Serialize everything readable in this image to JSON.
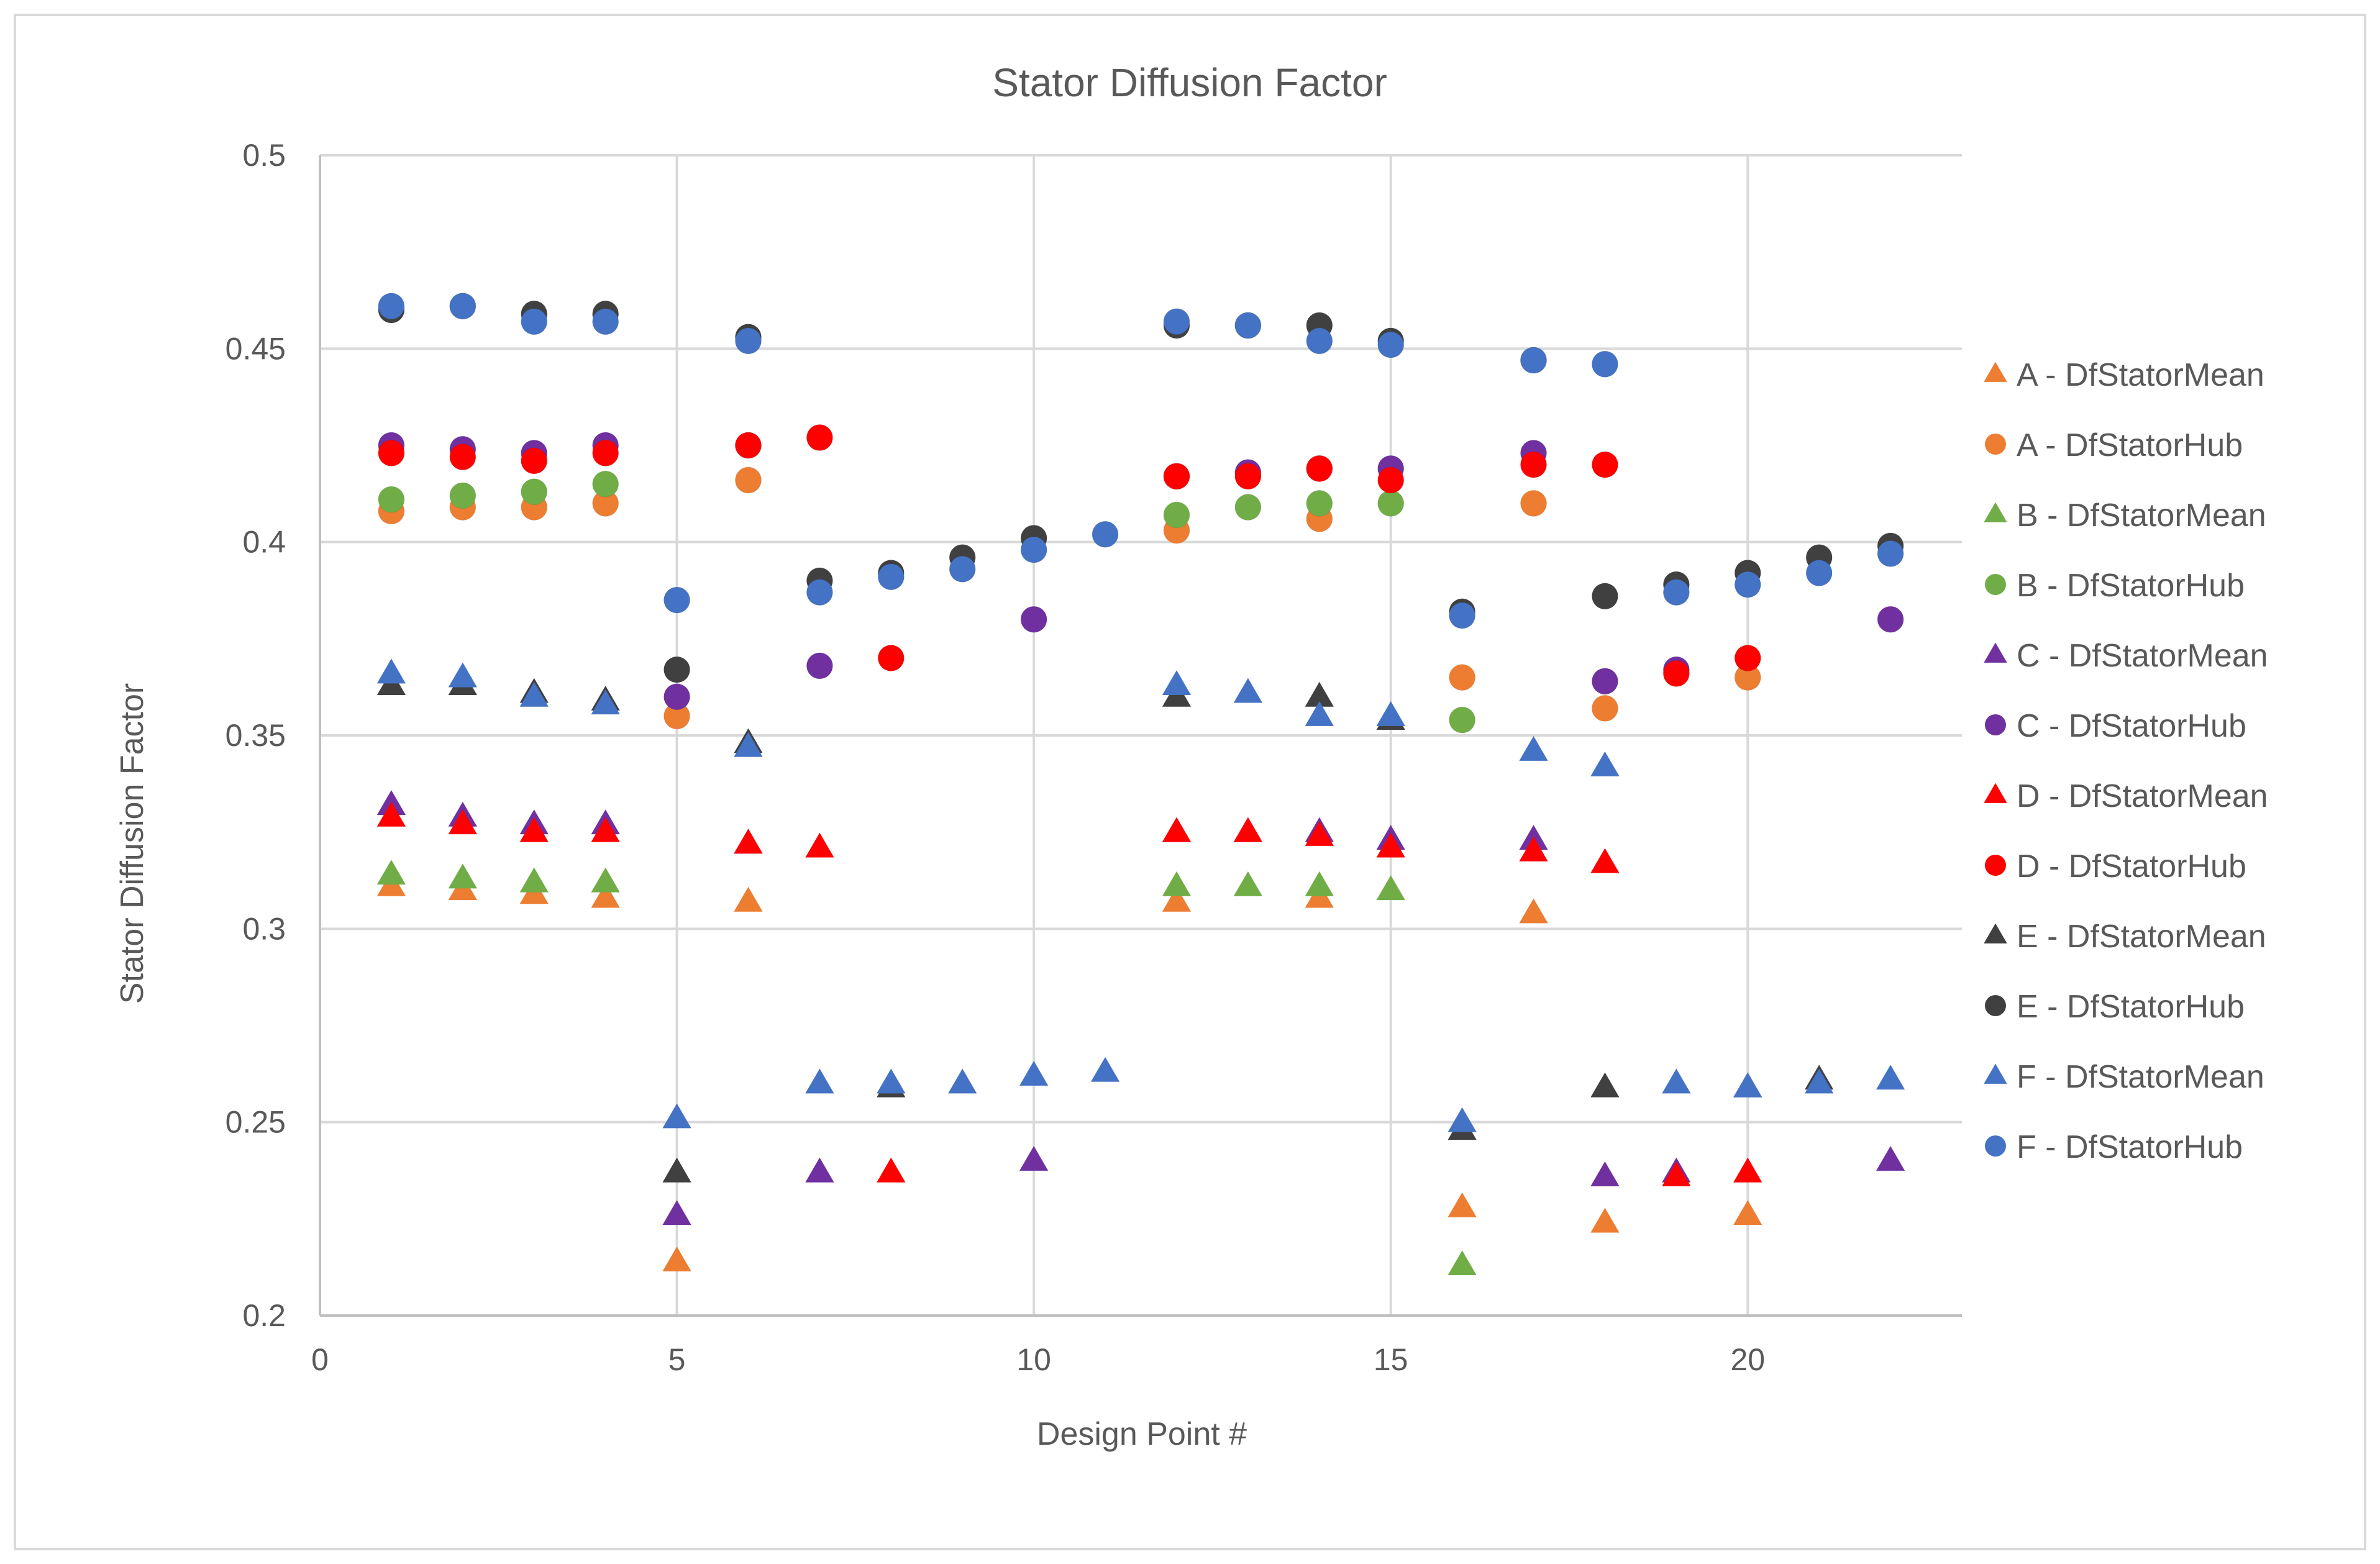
{
  "chart_data": {
    "type": "scatter",
    "title": "Stator Diffusion Factor",
    "xlabel": "Design Point #",
    "ylabel": "Stator Diffusion Factor",
    "xlim": [
      0,
      23
    ],
    "ylim": [
      0.2,
      0.5
    ],
    "xticks": [
      0,
      5,
      10,
      15,
      20
    ],
    "xtick_labels": [
      "0",
      "5",
      "10",
      "15",
      "20"
    ],
    "yticks": [
      0.2,
      0.25,
      0.3,
      0.35,
      0.4,
      0.45,
      0.5
    ],
    "ytick_labels": [
      "0.2",
      "0.25",
      "0.3",
      "0.35",
      "0.4",
      "0.45",
      "0.5"
    ],
    "grid": true,
    "legend_position": "right",
    "series": [
      {
        "name": "A - DfStatorMean",
        "marker": "triangle",
        "color": "#ED7D31",
        "points": [
          [
            1,
            0.311
          ],
          [
            2,
            0.31
          ],
          [
            3,
            0.309
          ],
          [
            4,
            0.308
          ],
          [
            5,
            0.214
          ],
          [
            6,
            0.307
          ],
          [
            12,
            0.307
          ],
          [
            14,
            0.308
          ],
          [
            16,
            0.228
          ],
          [
            17,
            0.304
          ],
          [
            18,
            0.224
          ],
          [
            20,
            0.226
          ]
        ]
      },
      {
        "name": "A - DfStatorHub",
        "marker": "circle",
        "color": "#ED7D31",
        "points": [
          [
            1,
            0.408
          ],
          [
            2,
            0.409
          ],
          [
            3,
            0.409
          ],
          [
            4,
            0.41
          ],
          [
            5,
            0.355
          ],
          [
            6,
            0.416
          ],
          [
            12,
            0.403
          ],
          [
            14,
            0.406
          ],
          [
            16,
            0.365
          ],
          [
            17,
            0.41
          ],
          [
            18,
            0.357
          ],
          [
            20,
            0.365
          ]
        ]
      },
      {
        "name": "B - DfStatorMean",
        "marker": "triangle",
        "color": "#70AD47",
        "points": [
          [
            1,
            0.314
          ],
          [
            2,
            0.313
          ],
          [
            3,
            0.312
          ],
          [
            4,
            0.312
          ],
          [
            12,
            0.311
          ],
          [
            13,
            0.311
          ],
          [
            14,
            0.311
          ],
          [
            15,
            0.31
          ],
          [
            16,
            0.213
          ]
        ]
      },
      {
        "name": "B - DfStatorHub",
        "marker": "circle",
        "color": "#70AD47",
        "points": [
          [
            1,
            0.411
          ],
          [
            2,
            0.412
          ],
          [
            3,
            0.413
          ],
          [
            4,
            0.415
          ],
          [
            12,
            0.407
          ],
          [
            13,
            0.409
          ],
          [
            14,
            0.41
          ],
          [
            15,
            0.41
          ],
          [
            16,
            0.354
          ]
        ]
      },
      {
        "name": "C - DfStatorMean",
        "marker": "triangle",
        "color": "#7030A0",
        "points": [
          [
            1,
            0.332
          ],
          [
            2,
            0.329
          ],
          [
            3,
            0.327
          ],
          [
            4,
            0.327
          ],
          [
            5,
            0.226
          ],
          [
            6,
            0.322
          ],
          [
            7,
            0.237
          ],
          [
            10,
            0.24
          ],
          [
            12,
            0.325
          ],
          [
            13,
            0.325
          ],
          [
            14,
            0.325
          ],
          [
            15,
            0.323
          ],
          [
            17,
            0.323
          ],
          [
            18,
            0.236
          ],
          [
            19,
            0.237
          ],
          [
            22,
            0.24
          ]
        ]
      },
      {
        "name": "C - DfStatorHub",
        "marker": "circle",
        "color": "#7030A0",
        "points": [
          [
            1,
            0.425
          ],
          [
            2,
            0.424
          ],
          [
            3,
            0.423
          ],
          [
            4,
            0.425
          ],
          [
            5,
            0.36
          ],
          [
            6,
            0.425
          ],
          [
            7,
            0.368
          ],
          [
            10,
            0.38
          ],
          [
            12,
            0.417
          ],
          [
            13,
            0.418
          ],
          [
            14,
            0.419
          ],
          [
            15,
            0.419
          ],
          [
            17,
            0.423
          ],
          [
            18,
            0.364
          ],
          [
            19,
            0.367
          ],
          [
            22,
            0.38
          ]
        ]
      },
      {
        "name": "D - DfStatorMean",
        "marker": "triangle",
        "color": "#FF0000",
        "points": [
          [
            1,
            0.329
          ],
          [
            2,
            0.327
          ],
          [
            3,
            0.325
          ],
          [
            4,
            0.325
          ],
          [
            6,
            0.322
          ],
          [
            7,
            0.321
          ],
          [
            8,
            0.237
          ],
          [
            12,
            0.325
          ],
          [
            13,
            0.325
          ],
          [
            14,
            0.324
          ],
          [
            15,
            0.321
          ],
          [
            17,
            0.32
          ],
          [
            18,
            0.317
          ],
          [
            19,
            0.236
          ],
          [
            20,
            0.237
          ]
        ]
      },
      {
        "name": "D - DfStatorHub",
        "marker": "circle",
        "color": "#FF0000",
        "points": [
          [
            1,
            0.423
          ],
          [
            2,
            0.422
          ],
          [
            3,
            0.421
          ],
          [
            4,
            0.423
          ],
          [
            6,
            0.425
          ],
          [
            7,
            0.427
          ],
          [
            8,
            0.37
          ],
          [
            12,
            0.417
          ],
          [
            13,
            0.417
          ],
          [
            14,
            0.419
          ],
          [
            15,
            0.416
          ],
          [
            17,
            0.42
          ],
          [
            18,
            0.42
          ],
          [
            19,
            0.366
          ],
          [
            20,
            0.37
          ]
        ]
      },
      {
        "name": "E - DfStatorMean",
        "marker": "triangle",
        "color": "#404040",
        "points": [
          [
            1,
            0.363
          ],
          [
            2,
            0.363
          ],
          [
            3,
            0.361
          ],
          [
            4,
            0.359
          ],
          [
            5,
            0.237
          ],
          [
            6,
            0.348
          ],
          [
            8,
            0.259
          ],
          [
            12,
            0.36
          ],
          [
            14,
            0.36
          ],
          [
            15,
            0.354
          ],
          [
            16,
            0.248
          ],
          [
            18,
            0.259
          ],
          [
            20,
            0.259
          ],
          [
            21,
            0.261
          ]
        ]
      },
      {
        "name": "E - DfStatorHub",
        "marker": "circle",
        "color": "#404040",
        "points": [
          [
            1,
            0.46
          ],
          [
            2,
            0.461
          ],
          [
            3,
            0.459
          ],
          [
            4,
            0.459
          ],
          [
            5,
            0.367
          ],
          [
            6,
            0.453
          ],
          [
            7,
            0.39
          ],
          [
            8,
            0.392
          ],
          [
            9,
            0.396
          ],
          [
            10,
            0.401
          ],
          [
            12,
            0.456
          ],
          [
            13,
            0.456
          ],
          [
            14,
            0.456
          ],
          [
            15,
            0.452
          ],
          [
            16,
            0.382
          ],
          [
            17,
            0.447
          ],
          [
            18,
            0.386
          ],
          [
            19,
            0.389
          ],
          [
            20,
            0.392
          ],
          [
            21,
            0.396
          ],
          [
            22,
            0.399
          ]
        ]
      },
      {
        "name": "F - DfStatorMean",
        "marker": "triangle",
        "color": "#4472C4",
        "points": [
          [
            1,
            0.366
          ],
          [
            2,
            0.365
          ],
          [
            3,
            0.36
          ],
          [
            4,
            0.358
          ],
          [
            5,
            0.251
          ],
          [
            6,
            0.347
          ],
          [
            7,
            0.26
          ],
          [
            8,
            0.26
          ],
          [
            9,
            0.26
          ],
          [
            10,
            0.262
          ],
          [
            11,
            0.263
          ],
          [
            12,
            0.363
          ],
          [
            13,
            0.361
          ],
          [
            14,
            0.355
          ],
          [
            15,
            0.355
          ],
          [
            16,
            0.25
          ],
          [
            17,
            0.346
          ],
          [
            18,
            0.342
          ],
          [
            19,
            0.26
          ],
          [
            20,
            0.259
          ],
          [
            21,
            0.26
          ],
          [
            22,
            0.261
          ]
        ]
      },
      {
        "name": "F - DfStatorHub",
        "marker": "circle",
        "color": "#4472C4",
        "points": [
          [
            1,
            0.461
          ],
          [
            2,
            0.461
          ],
          [
            3,
            0.457
          ],
          [
            4,
            0.457
          ],
          [
            5,
            0.385
          ],
          [
            6,
            0.452
          ],
          [
            7,
            0.387
          ],
          [
            8,
            0.391
          ],
          [
            9,
            0.393
          ],
          [
            10,
            0.398
          ],
          [
            11,
            0.402
          ],
          [
            12,
            0.457
          ],
          [
            13,
            0.456
          ],
          [
            14,
            0.452
          ],
          [
            15,
            0.451
          ],
          [
            16,
            0.381
          ],
          [
            17,
            0.447
          ],
          [
            18,
            0.446
          ],
          [
            19,
            0.387
          ],
          [
            20,
            0.389
          ],
          [
            21,
            0.392
          ],
          [
            22,
            0.397
          ]
        ]
      }
    ]
  }
}
